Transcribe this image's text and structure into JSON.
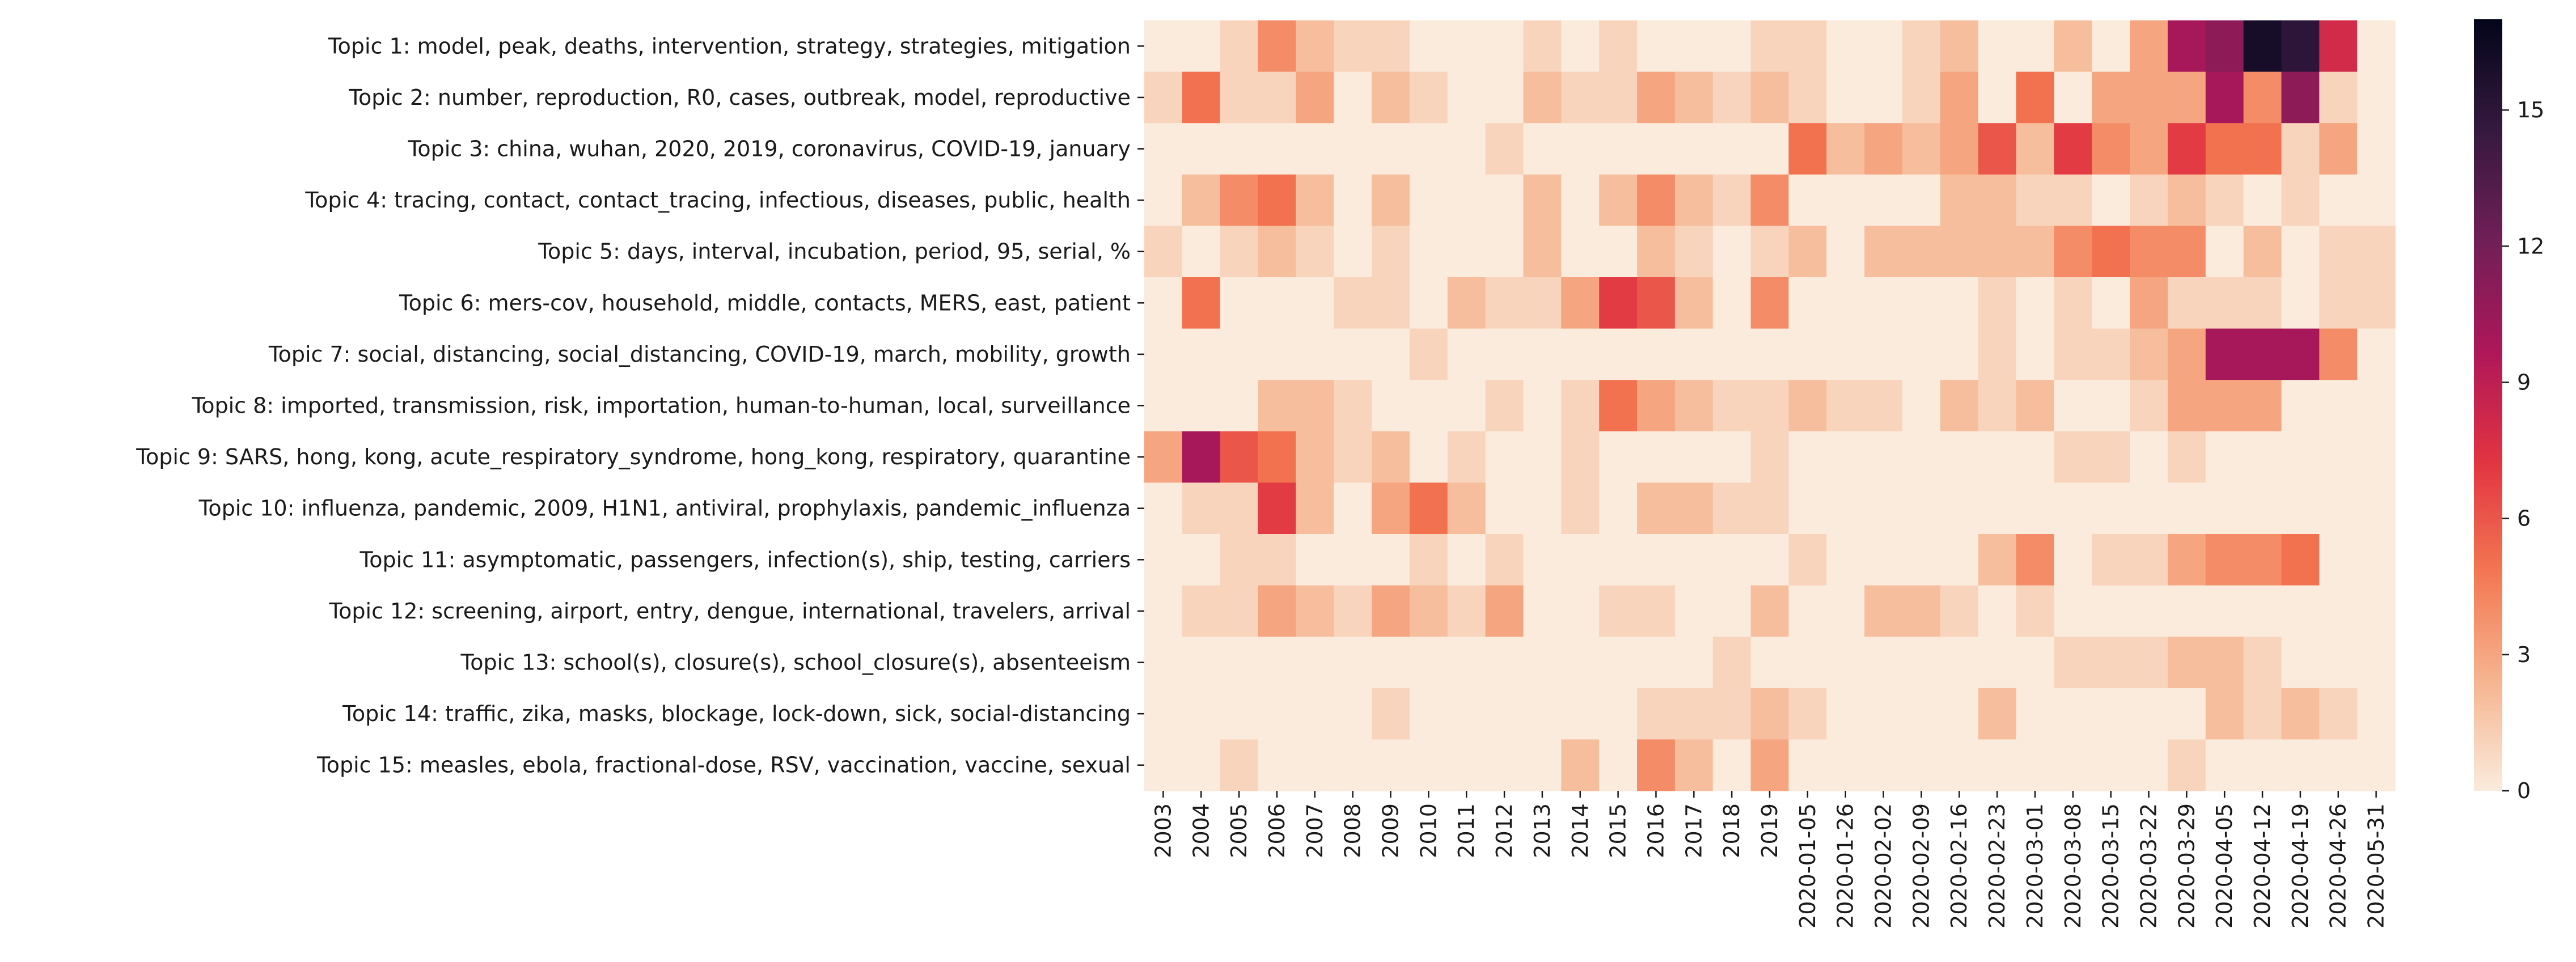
{
  "chart_data": {
    "type": "heatmap",
    "title": "",
    "xlabel": "",
    "ylabel": "",
    "x": [
      "2003",
      "2004",
      "2005",
      "2006",
      "2007",
      "2008",
      "2009",
      "2010",
      "2011",
      "2012",
      "2013",
      "2014",
      "2015",
      "2016",
      "2017",
      "2018",
      "2019",
      "2020-01-05",
      "2020-01-26",
      "2020-02-02",
      "2020-02-09",
      "2020-02-16",
      "2020-02-23",
      "2020-03-01",
      "2020-03-08",
      "2020-03-15",
      "2020-03-22",
      "2020-03-29",
      "2020-04-05",
      "2020-04-12",
      "2020-04-19",
      "2020-04-26",
      "2020-05-31"
    ],
    "y": [
      "Topic 1: model, peak, deaths, intervention, strategy, strategies, mitigation",
      "Topic 2: number, reproduction, R0, cases, outbreak, model, reproductive",
      "Topic 3: china, wuhan, 2020, 2019, coronavirus, COVID-19, january",
      "Topic 4: tracing, contact, contact_tracing, infectious, diseases, public, health",
      "Topic 5: days, interval, incubation, period, 95, serial, %",
      "Topic 6: mers-cov, household, middle, contacts, MERS, east, patient",
      "Topic 7: social, distancing, social_distancing, COVID-19, march, mobility, growth",
      "Topic 8: imported, transmission, risk, importation, human-to-human, local, surveillance",
      "Topic 9: SARS, hong, kong, acute_respiratory_syndrome, hong_kong, respiratory, quarantine",
      "Topic 10: influenza, pandemic, 2009, H1N1, antiviral, prophylaxis, pandemic_influenza",
      "Topic 11: asymptomatic, passengers, infection(s), ship, testing, carriers",
      "Topic 12: screening, airport, entry, dengue, international, travelers, arrival",
      "Topic 13: school(s), closure(s), school_closure(s), absenteeism",
      "Topic 14: traffic, zika, masks, blockage, lock-down, sick, social-distancing",
      "Topic 15: measles, ebola, fractional-dose, RSV, vaccination, vaccine, sexual"
    ],
    "values": [
      [
        0,
        0,
        1,
        4,
        2,
        1,
        1,
        0,
        0,
        0,
        1,
        0,
        1,
        0,
        0,
        0,
        1,
        1,
        0,
        0,
        1,
        2,
        0,
        0,
        2,
        0,
        3,
        10,
        11,
        16,
        15,
        8,
        0
      ],
      [
        1,
        5,
        1,
        1,
        3,
        0,
        2,
        1,
        0,
        0,
        2,
        1,
        1,
        3,
        2,
        1,
        2,
        1,
        0,
        0,
        1,
        3,
        0,
        5,
        0,
        3,
        3,
        3,
        10,
        4,
        11,
        1,
        0
      ],
      [
        0,
        0,
        0,
        0,
        0,
        0,
        0,
        0,
        0,
        1,
        0,
        0,
        0,
        0,
        0,
        0,
        0,
        5,
        2,
        3,
        2,
        3,
        6,
        2,
        7,
        4,
        3,
        7,
        5,
        5,
        1,
        3,
        0
      ],
      [
        0,
        2,
        4,
        5,
        2,
        0,
        2,
        0,
        0,
        0,
        2,
        0,
        2,
        4,
        2,
        1,
        4,
        0,
        0,
        0,
        0,
        2,
        2,
        1,
        1,
        0,
        1,
        2,
        1,
        0,
        1,
        0,
        0
      ],
      [
        1,
        0,
        1,
        2,
        1,
        0,
        1,
        0,
        0,
        0,
        2,
        0,
        0,
        2,
        1,
        0,
        1,
        2,
        0,
        2,
        2,
        2,
        2,
        2,
        4,
        5,
        4,
        4,
        0,
        2,
        0,
        1,
        1
      ],
      [
        0,
        5,
        0,
        0,
        0,
        1,
        1,
        0,
        2,
        1,
        1,
        3,
        7,
        6,
        2,
        0,
        4,
        0,
        0,
        0,
        0,
        0,
        1,
        0,
        1,
        0,
        3,
        1,
        1,
        1,
        0,
        1,
        1
      ],
      [
        0,
        0,
        0,
        0,
        0,
        0,
        0,
        1,
        0,
        0,
        0,
        0,
        0,
        0,
        0,
        0,
        0,
        0,
        0,
        0,
        0,
        0,
        1,
        0,
        1,
        1,
        2,
        3,
        10,
        10,
        10,
        4,
        0
      ],
      [
        0,
        0,
        0,
        2,
        2,
        1,
        0,
        0,
        0,
        1,
        0,
        1,
        5,
        3,
        2,
        1,
        1,
        2,
        1,
        1,
        0,
        2,
        1,
        2,
        0,
        0,
        1,
        3,
        3,
        3,
        0,
        0,
        0
      ],
      [
        3,
        10,
        6,
        5,
        2,
        1,
        2,
        0,
        1,
        0,
        0,
        1,
        0,
        0,
        0,
        0,
        1,
        0,
        0,
        0,
        0,
        0,
        0,
        0,
        1,
        1,
        0,
        1,
        0,
        0,
        0,
        0,
        0
      ],
      [
        0,
        1,
        1,
        7,
        2,
        0,
        3,
        5,
        2,
        0,
        0,
        1,
        0,
        2,
        2,
        1,
        1,
        0,
        0,
        0,
        0,
        0,
        0,
        0,
        0,
        0,
        0,
        0,
        0,
        0,
        0,
        0,
        0
      ],
      [
        0,
        0,
        1,
        1,
        0,
        0,
        0,
        1,
        0,
        1,
        0,
        0,
        0,
        0,
        0,
        0,
        0,
        1,
        0,
        0,
        0,
        0,
        2,
        4,
        0,
        1,
        1,
        3,
        4,
        4,
        5,
        0,
        0
      ],
      [
        0,
        1,
        1,
        3,
        2,
        1,
        3,
        2,
        1,
        3,
        0,
        0,
        1,
        1,
        0,
        0,
        2,
        0,
        0,
        2,
        2,
        1,
        0,
        1,
        0,
        0,
        0,
        0,
        0,
        0,
        0,
        0,
        0
      ],
      [
        0,
        0,
        0,
        0,
        0,
        0,
        0,
        0,
        0,
        0,
        0,
        0,
        0,
        0,
        0,
        1,
        0,
        0,
        0,
        0,
        0,
        0,
        0,
        0,
        1,
        1,
        1,
        2,
        2,
        1,
        0,
        0,
        0
      ],
      [
        0,
        0,
        0,
        0,
        0,
        0,
        1,
        0,
        0,
        0,
        0,
        0,
        0,
        1,
        1,
        1,
        2,
        1,
        0,
        0,
        0,
        0,
        2,
        0,
        0,
        0,
        0,
        0,
        2,
        1,
        2,
        1,
        0
      ],
      [
        0,
        0,
        1,
        0,
        0,
        0,
        0,
        0,
        0,
        0,
        0,
        2,
        0,
        4,
        2,
        0,
        3,
        0,
        0,
        0,
        0,
        0,
        0,
        0,
        0,
        0,
        0,
        1,
        0,
        0,
        0,
        0,
        0
      ]
    ],
    "colorbar": {
      "vmin": 0,
      "vmax": 17,
      "ticks": [
        0,
        3,
        6,
        9,
        12,
        15
      ],
      "colormap": "rocket_r",
      "colors": [
        "#faebdd",
        "#f6b48f",
        "#f37651",
        "#e13342",
        "#ad1759",
        "#701f57",
        "#35193e",
        "#03051a"
      ]
    },
    "grid": false,
    "legend": "colorbar-right"
  }
}
